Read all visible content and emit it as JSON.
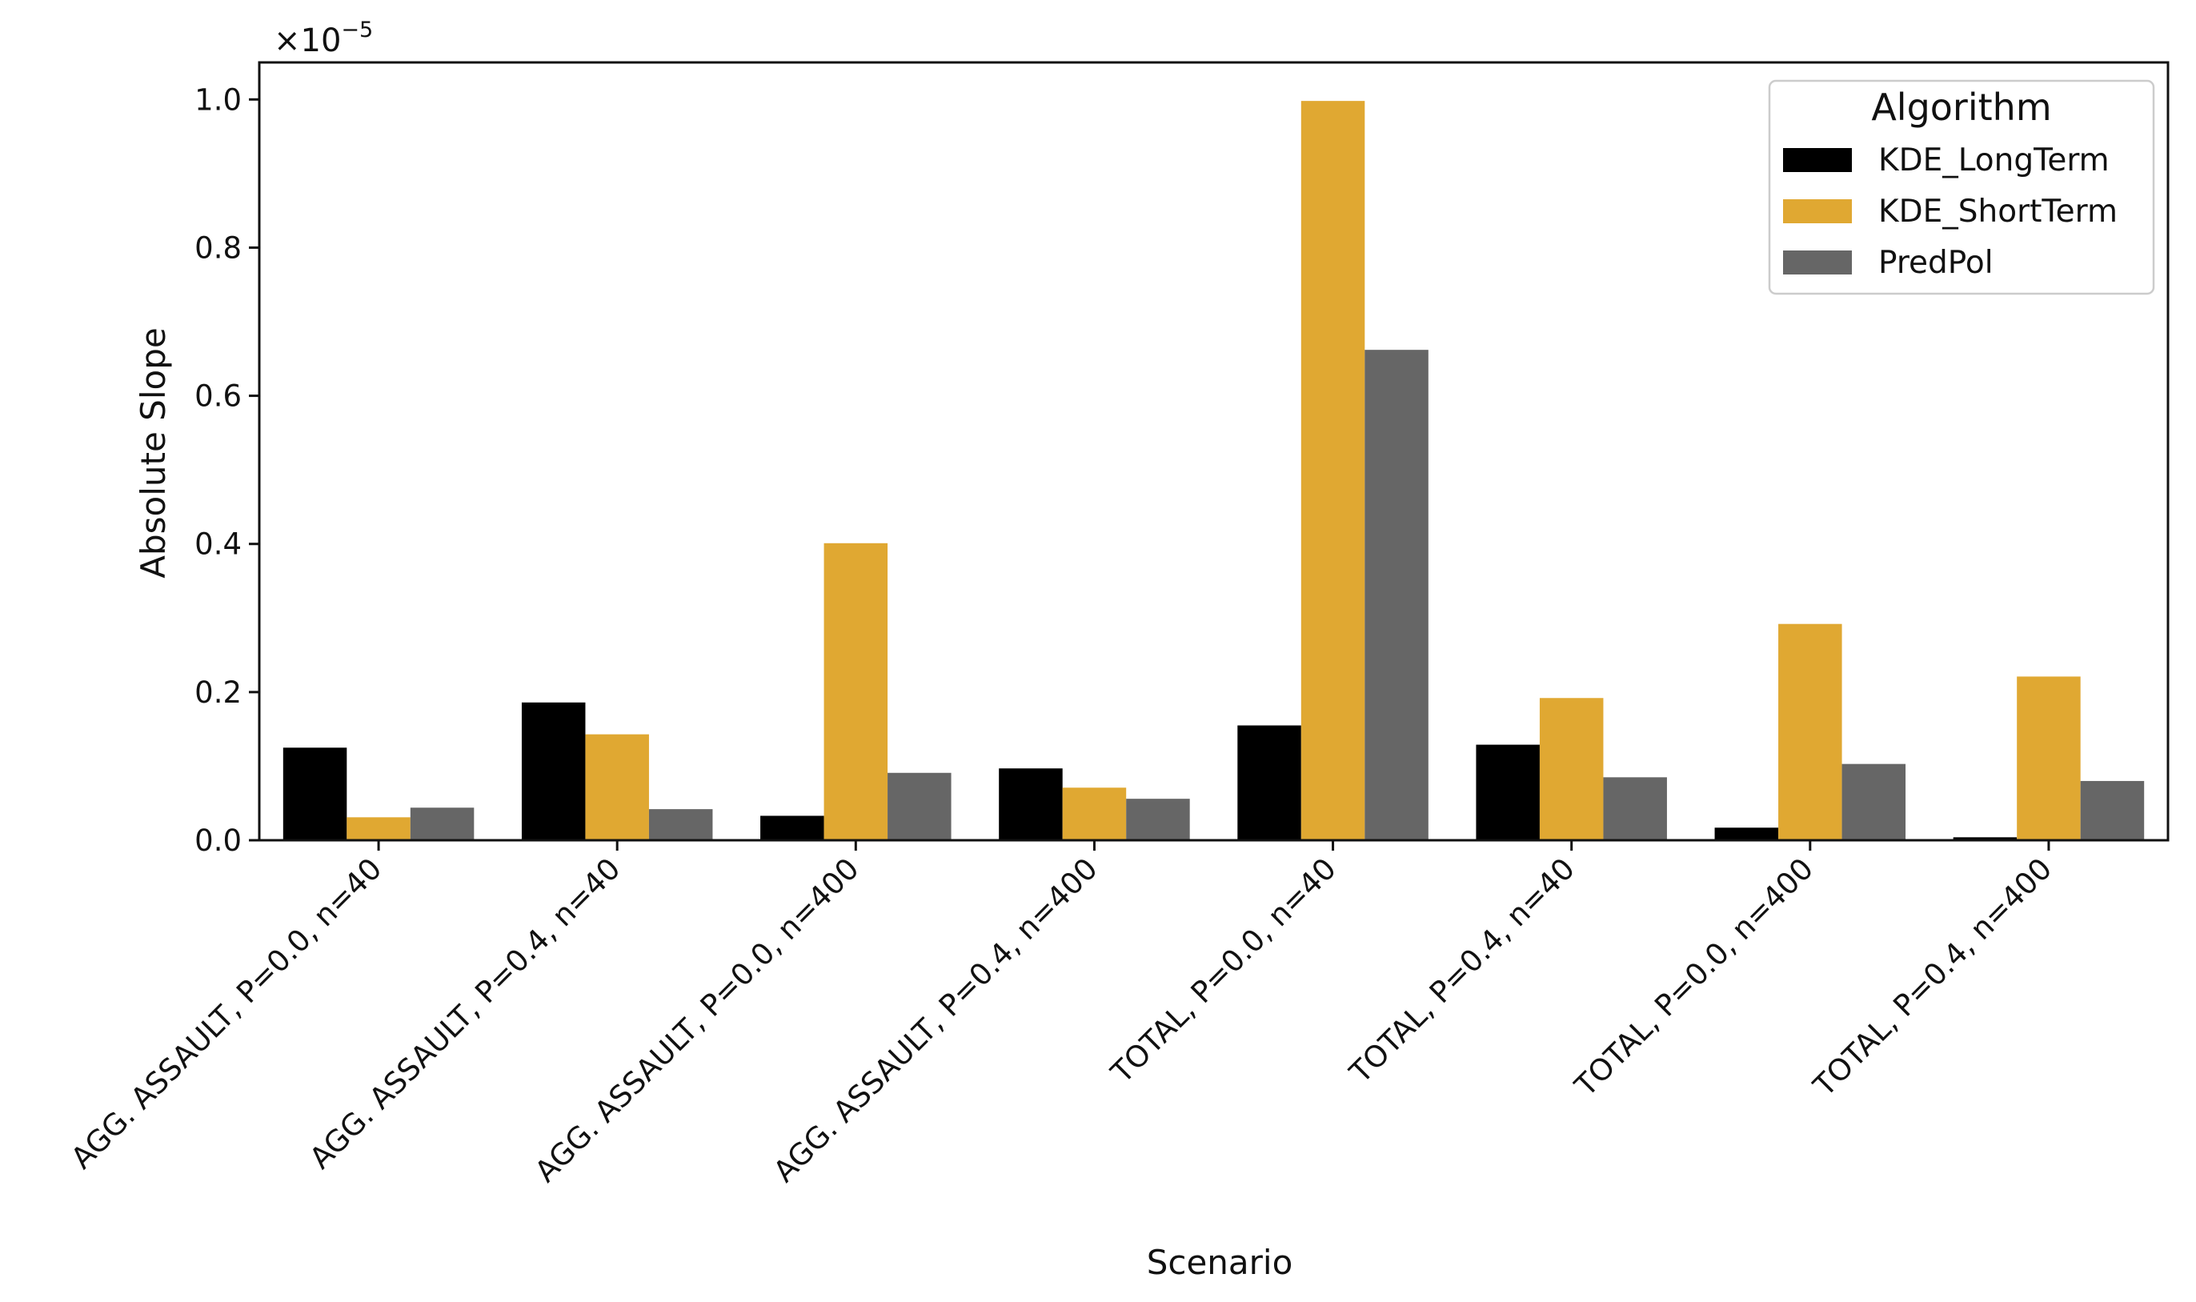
{
  "chart_data": {
    "type": "bar",
    "title": "",
    "xlabel": "Scenario",
    "ylabel": "Absolute Slope",
    "y_offset_base": "×10",
    "y_offset_exponent": "−5",
    "ylim": [
      0,
      1.05
    ],
    "yticks": [
      0.0,
      0.2,
      0.4,
      0.6,
      0.8,
      1.0
    ],
    "ytick_labels": [
      "0.0",
      "0.2",
      "0.4",
      "0.6",
      "0.8",
      "1.0"
    ],
    "grid": false,
    "legend": {
      "title": "Algorithm",
      "placement": "top-right"
    },
    "categories": [
      "AGG. ASSAULT, P=0.0, n=40",
      "AGG. ASSAULT, P=0.4, n=40",
      "AGG. ASSAULT, P=0.0, n=400",
      "AGG. ASSAULT, P=0.4, n=400",
      "TOTAL, P=0.0, n=40",
      "TOTAL, P=0.4, n=40",
      "TOTAL, P=0.0, n=400",
      "TOTAL, P=0.4, n=400"
    ],
    "series": [
      {
        "name": "KDE_LongTerm",
        "color": "#000000",
        "values": [
          0.125,
          0.186,
          0.033,
          0.097,
          0.155,
          0.129,
          0.017,
          0.004
        ]
      },
      {
        "name": "KDE_ShortTerm",
        "color": "#e0a832",
        "values": [
          0.031,
          0.143,
          0.401,
          0.071,
          0.998,
          0.192,
          0.292,
          0.221
        ]
      },
      {
        "name": "PredPol",
        "color": "#666666",
        "values": [
          0.044,
          0.042,
          0.091,
          0.056,
          0.662,
          0.085,
          0.103,
          0.08
        ]
      }
    ]
  }
}
